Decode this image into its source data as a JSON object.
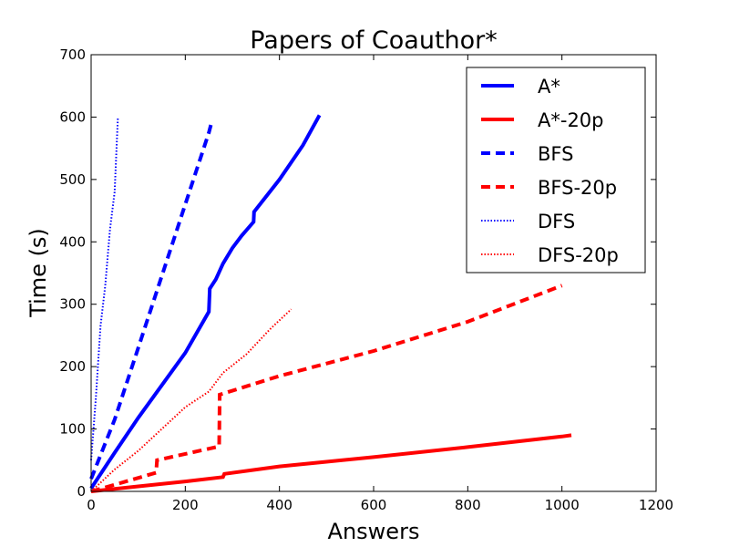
{
  "chart_data": {
    "type": "line",
    "title": "Papers of Coauthor*",
    "xlabel": "Answers",
    "ylabel": "Time (s)",
    "xlim": [
      0,
      1200
    ],
    "ylim": [
      0,
      700
    ],
    "xticks": [
      0,
      200,
      400,
      600,
      800,
      1000,
      1200
    ],
    "yticks": [
      0,
      100,
      200,
      300,
      400,
      500,
      600,
      700
    ],
    "grid": false,
    "legend_position": "top-right",
    "series": [
      {
        "name": "A*",
        "color": "#0000ff",
        "style": "solid",
        "points": [
          [
            0,
            5
          ],
          [
            50,
            62
          ],
          [
            100,
            118
          ],
          [
            150,
            170
          ],
          [
            200,
            222
          ],
          [
            250,
            288
          ],
          [
            252,
            325
          ],
          [
            265,
            340
          ],
          [
            280,
            365
          ],
          [
            300,
            390
          ],
          [
            320,
            410
          ],
          [
            345,
            432
          ],
          [
            346,
            448
          ],
          [
            400,
            500
          ],
          [
            450,
            555
          ],
          [
            485,
            603
          ]
        ]
      },
      {
        "name": "A*-20p",
        "color": "#ff0000",
        "style": "solid",
        "points": [
          [
            0,
            0
          ],
          [
            100,
            8
          ],
          [
            200,
            16
          ],
          [
            280,
            23
          ],
          [
            283,
            28
          ],
          [
            400,
            40
          ],
          [
            600,
            55
          ],
          [
            800,
            71
          ],
          [
            1000,
            88
          ],
          [
            1020,
            90
          ]
        ]
      },
      {
        "name": "BFS",
        "color": "#0000ff",
        "style": "dashed",
        "points": [
          [
            0,
            20
          ],
          [
            50,
            115
          ],
          [
            100,
            230
          ],
          [
            150,
            345
          ],
          [
            200,
            460
          ],
          [
            250,
            575
          ],
          [
            257,
            595
          ]
        ]
      },
      {
        "name": "BFS-20p",
        "color": "#ff0000",
        "style": "dashed",
        "points": [
          [
            0,
            0
          ],
          [
            70,
            15
          ],
          [
            138,
            30
          ],
          [
            140,
            50
          ],
          [
            200,
            60
          ],
          [
            272,
            72
          ],
          [
            273,
            155
          ],
          [
            400,
            185
          ],
          [
            600,
            225
          ],
          [
            800,
            272
          ],
          [
            1000,
            330
          ]
        ]
      },
      {
        "name": "DFS",
        "color": "#0000ff",
        "style": "dotted",
        "points": [
          [
            0,
            50
          ],
          [
            10,
            150
          ],
          [
            20,
            265
          ],
          [
            30,
            330
          ],
          [
            40,
            420
          ],
          [
            50,
            480
          ],
          [
            57,
            600
          ]
        ]
      },
      {
        "name": "DFS-20p",
        "color": "#ff0000",
        "style": "dotted",
        "points": [
          [
            0,
            0
          ],
          [
            50,
            35
          ],
          [
            100,
            65
          ],
          [
            150,
            100
          ],
          [
            200,
            135
          ],
          [
            250,
            160
          ],
          [
            280,
            190
          ],
          [
            330,
            220
          ],
          [
            380,
            260
          ],
          [
            425,
            292
          ]
        ]
      }
    ]
  }
}
